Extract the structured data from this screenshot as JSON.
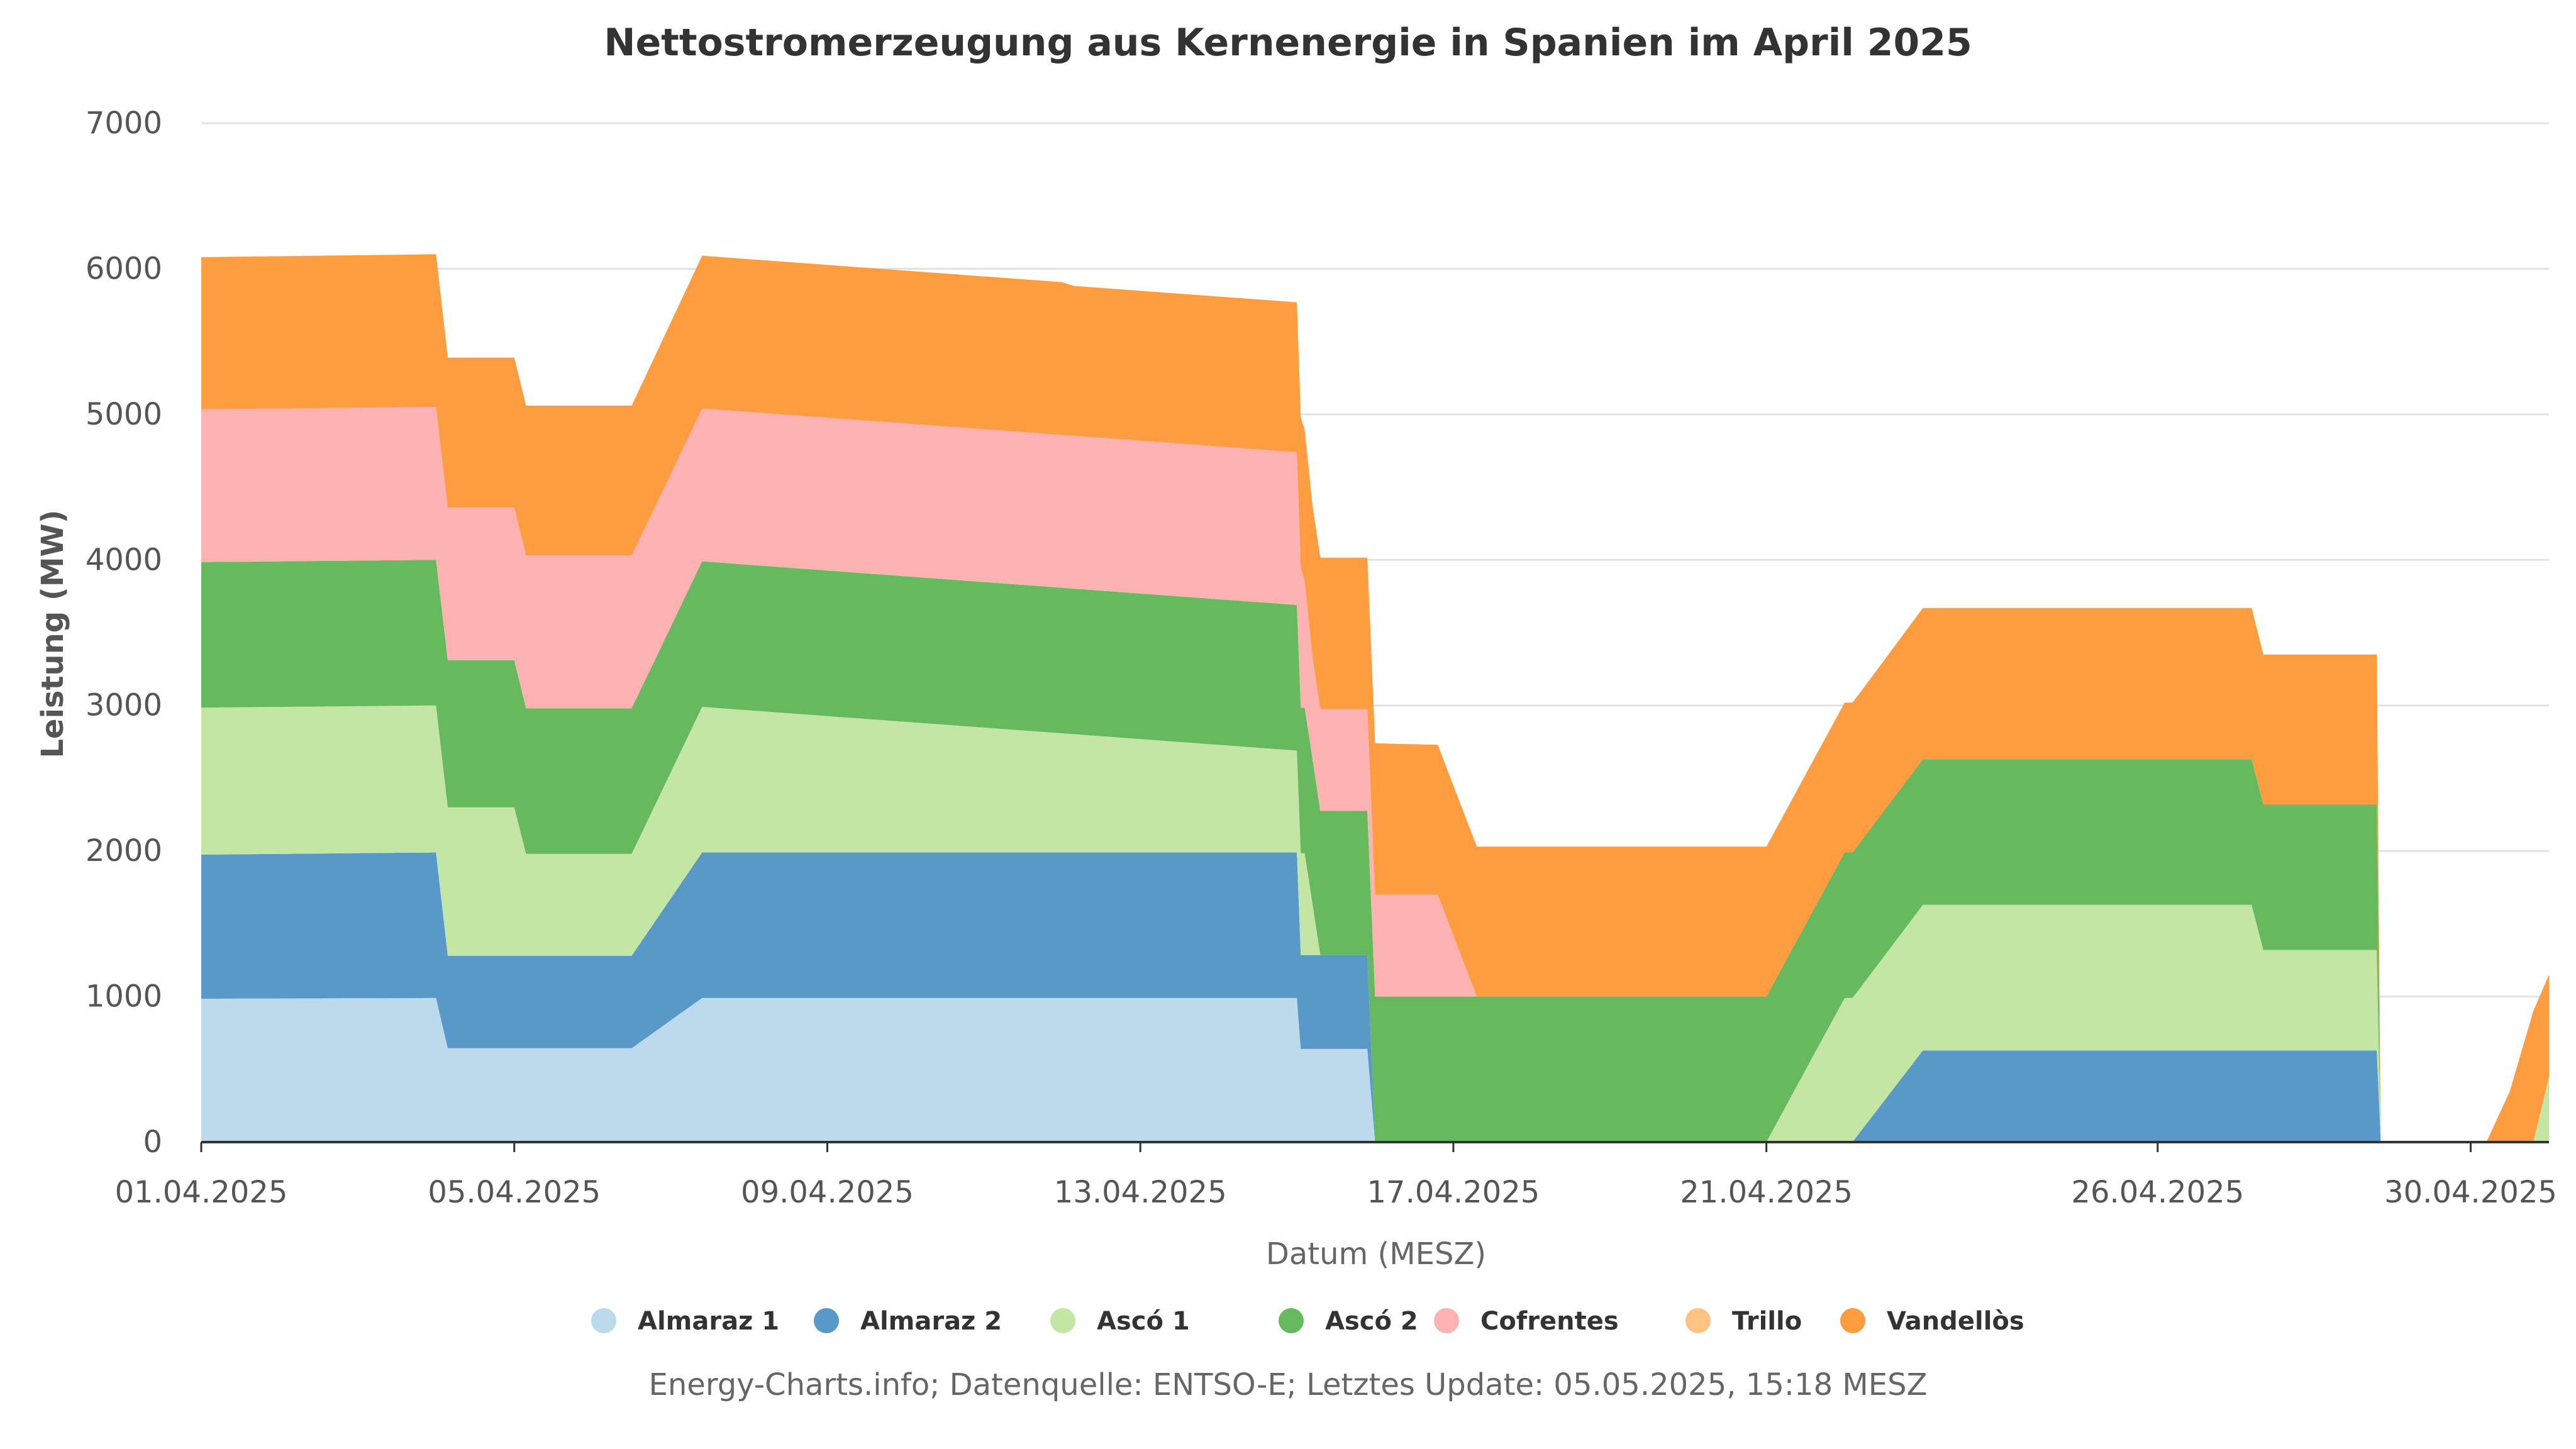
{
  "chart_data": {
    "type": "area",
    "stacked": true,
    "title": "Nettostromerzeugung aus Kernenergie in Spanien im April 2025",
    "xlabel": "Datum (MESZ)",
    "ylabel": "Leistung (MW)",
    "ylim": [
      0,
      7000
    ],
    "yticks": [
      0,
      1000,
      2000,
      3000,
      4000,
      5000,
      6000,
      7000
    ],
    "xlim": [
      "2025-04-01",
      "2025-05-01"
    ],
    "xticks": [
      "01.04.2025",
      "05.04.2025",
      "09.04.2025",
      "13.04.2025",
      "17.04.2025",
      "21.04.2025",
      "26.04.2025",
      "30.04.2025"
    ],
    "legend_position": "bottom",
    "grid": true,
    "credits": "Energy-Charts.info; Datenquelle: ENTSO-E; Letztes Update: 05.05.2025, 15:18 MESZ",
    "series": [
      {
        "name": "Almaraz 1",
        "color": "#bdd9ec",
        "values": [
          [
            1.0,
            985
          ],
          [
            4.0,
            990
          ],
          [
            4.15,
            645
          ],
          [
            6.5,
            645
          ],
          [
            7.4,
            990
          ],
          [
            15.0,
            990
          ],
          [
            15.05,
            640
          ],
          [
            15.9,
            640
          ],
          [
            16.0,
            0
          ],
          [
            31.0,
            0
          ]
        ]
      },
      {
        "name": "Almaraz 2",
        "color": "#5899c9",
        "values": [
          [
            1.0,
            990
          ],
          [
            4.0,
            1000
          ],
          [
            4.15,
            635
          ],
          [
            6.5,
            635
          ],
          [
            7.4,
            1000
          ],
          [
            15.0,
            1000
          ],
          [
            15.05,
            645
          ],
          [
            15.9,
            645
          ],
          [
            16.0,
            0
          ],
          [
            22.1,
            0
          ],
          [
            23.0,
            630
          ],
          [
            28.8,
            630
          ],
          [
            28.85,
            0
          ],
          [
            31.0,
            0
          ]
        ]
      },
      {
        "name": "Ascó 1",
        "color": "#c4e6a5",
        "values": [
          [
            1.0,
            1010
          ],
          [
            4.0,
            1010
          ],
          [
            4.15,
            1020
          ],
          [
            5.0,
            1020
          ],
          [
            5.15,
            700
          ],
          [
            6.5,
            700
          ],
          [
            7.4,
            1000
          ],
          [
            15.0,
            700
          ],
          [
            15.1,
            700
          ],
          [
            15.3,
            0
          ],
          [
            21.0,
            0
          ],
          [
            22.0,
            990
          ],
          [
            22.2,
            990
          ],
          [
            23.0,
            1000
          ],
          [
            27.2,
            1000
          ],
          [
            27.35,
            690
          ],
          [
            28.8,
            690
          ],
          [
            28.85,
            0
          ],
          [
            30.8,
            0
          ],
          [
            31.0,
            450
          ]
        ]
      },
      {
        "name": "Ascó 2",
        "color": "#66b95f",
        "values": [
          [
            1.0,
            1000
          ],
          [
            4.0,
            1000
          ],
          [
            4.15,
            1010
          ],
          [
            5.0,
            1010
          ],
          [
            5.15,
            1000
          ],
          [
            6.5,
            1000
          ],
          [
            7.4,
            1000
          ],
          [
            12.0,
            1000
          ],
          [
            12.15,
            1000
          ],
          [
            15.0,
            1000
          ],
          [
            15.1,
            1000
          ],
          [
            15.3,
            990
          ],
          [
            15.9,
            990
          ],
          [
            16.0,
            1000
          ],
          [
            21.0,
            1000
          ],
          [
            21.5,
            1000
          ],
          [
            22.0,
            1000
          ],
          [
            22.2,
            1000
          ],
          [
            23.0,
            1000
          ],
          [
            27.2,
            1000
          ],
          [
            27.35,
            1000
          ],
          [
            28.8,
            1000
          ],
          [
            28.85,
            0
          ],
          [
            31.0,
            0
          ]
        ]
      },
      {
        "name": "Cofrentes",
        "color": "#fdb2b2",
        "values": [
          [
            1.0,
            1050
          ],
          [
            4.0,
            1050
          ],
          [
            4.15,
            1050
          ],
          [
            6.5,
            1050
          ],
          [
            7.4,
            1050
          ],
          [
            12.0,
            1050
          ],
          [
            12.15,
            1050
          ],
          [
            15.0,
            1050
          ],
          [
            15.2,
            700
          ],
          [
            15.9,
            700
          ],
          [
            16.0,
            700
          ],
          [
            16.8,
            700
          ],
          [
            17.3,
            0
          ],
          [
            31.0,
            0
          ]
        ]
      },
      {
        "name": "Trillo",
        "color": "#fec282",
        "values": [
          [
            1.0,
            0
          ],
          [
            31.0,
            0
          ]
        ]
      },
      {
        "name": "Vandellòs",
        "color": "#fe9c3f",
        "values": [
          [
            1.0,
            1045
          ],
          [
            4.0,
            1050
          ],
          [
            4.15,
            1030
          ],
          [
            6.5,
            1030
          ],
          [
            7.4,
            1050
          ],
          [
            12.0,
            1050
          ],
          [
            12.15,
            1030
          ],
          [
            15.0,
            1030
          ],
          [
            15.2,
            1040
          ],
          [
            15.9,
            1040
          ],
          [
            16.0,
            1040
          ],
          [
            16.8,
            1030
          ],
          [
            17.3,
            1030
          ],
          [
            21.0,
            1030
          ],
          [
            21.5,
            1030
          ],
          [
            22.0,
            1030
          ],
          [
            22.2,
            1030
          ],
          [
            23.0,
            1040
          ],
          [
            27.2,
            1040
          ],
          [
            27.35,
            1030
          ],
          [
            28.8,
            1030
          ],
          [
            28.85,
            0
          ],
          [
            30.2,
            0
          ],
          [
            30.5,
            350
          ],
          [
            30.8,
            900
          ],
          [
            31.0,
            700
          ]
        ]
      }
    ]
  }
}
